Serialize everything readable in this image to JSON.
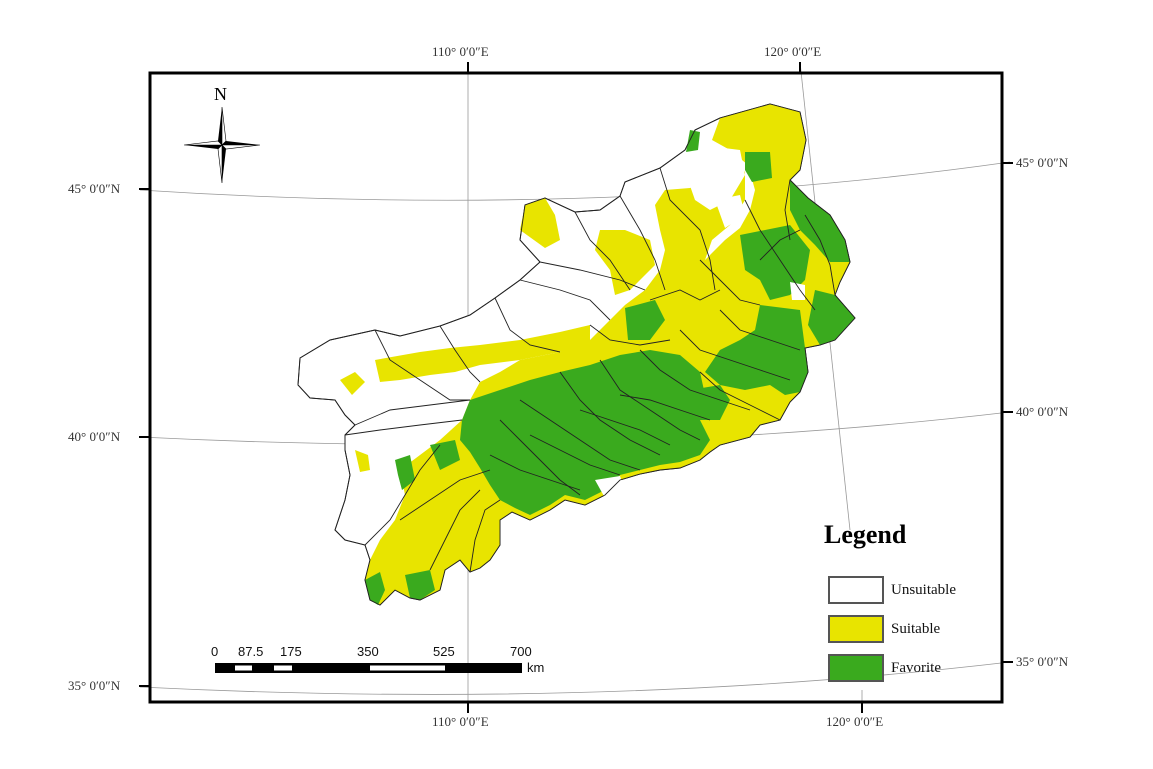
{
  "graticule": {
    "top": [
      "110° 0′0″E",
      "120° 0′0″E"
    ],
    "bottom": [
      "110° 0′0″E",
      "120° 0′0″E"
    ],
    "left": [
      "45° 0′0″N",
      "40° 0′0″N",
      "35° 0′0″N"
    ],
    "right": [
      "45° 0′0″N",
      "40° 0′0″N",
      "35° 0′0″N"
    ]
  },
  "north_arrow": {
    "letter": "N",
    "icon": "compass-rose-icon"
  },
  "legend": {
    "title": "Legend",
    "items": [
      {
        "label": "Unsuitable",
        "color": "#ffffff"
      },
      {
        "label": "Suitable",
        "color": "#e8e400"
      },
      {
        "label": "Favorite",
        "color": "#3aaa1e"
      }
    ]
  },
  "scale_bar": {
    "ticks": [
      "0",
      "87.5",
      "175",
      "350",
      "525",
      "700"
    ],
    "unit": "km"
  },
  "colors": {
    "unsuitable": "#ffffff",
    "suitable": "#e8e400",
    "favorite": "#3aaa1e",
    "boundary": "#222222",
    "graticule": "#999999",
    "frame": "#000000"
  }
}
